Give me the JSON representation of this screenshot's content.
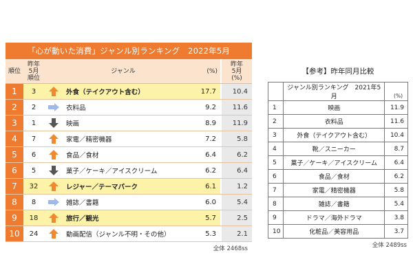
{
  "main": {
    "title": "「心が動いた消費」ジャンル別ランキング　2022年5月",
    "headers": {
      "rank": "順位",
      "prev_rank": "昨年\n5月\n順位",
      "genre": "ジャンル",
      "pct": "(%)",
      "prev_pct": "昨年\n5月\n(%)"
    },
    "rows": [
      {
        "rank": "1",
        "prev": "3",
        "trend": "up",
        "genre": "外食（テイクアウト含む）",
        "pct": "17.7",
        "prev_pct": "10.4",
        "highlight": true
      },
      {
        "rank": "2",
        "prev": "2",
        "trend": "same",
        "genre": "衣料品",
        "pct": "9.2",
        "prev_pct": "11.6",
        "highlight": false
      },
      {
        "rank": "3",
        "prev": "1",
        "trend": "down",
        "genre": "映画",
        "pct": "8.9",
        "prev_pct": "11.9",
        "highlight": false
      },
      {
        "rank": "4",
        "prev": "7",
        "trend": "up",
        "genre": "家電／精密機器",
        "pct": "7.2",
        "prev_pct": "5.8",
        "highlight": false
      },
      {
        "rank": "5",
        "prev": "6",
        "trend": "up",
        "genre": "食品／食材",
        "pct": "6.4",
        "prev_pct": "6.2",
        "highlight": false
      },
      {
        "rank": "6",
        "prev": "5",
        "trend": "down",
        "genre": "菓子／ケーキ／アイスクリーム",
        "pct": "6.2",
        "prev_pct": "6.4",
        "highlight": false
      },
      {
        "rank": "7",
        "prev": "32",
        "trend": "up",
        "genre": "レジャー／テーマパーク",
        "pct": "6.1",
        "prev_pct": "1.2",
        "highlight": true
      },
      {
        "rank": "8",
        "prev": "8",
        "trend": "same",
        "genre": "雑誌／書籍",
        "pct": "6.0",
        "prev_pct": "5.4",
        "highlight": false
      },
      {
        "rank": "9",
        "prev": "18",
        "trend": "up",
        "genre": "旅行／観光",
        "pct": "5.7",
        "prev_pct": "2.5",
        "highlight": true
      },
      {
        "rank": "10",
        "prev": "24",
        "trend": "up",
        "genre": "動画配信（ジャンル不明・その他）",
        "pct": "5.3",
        "prev_pct": "2.1",
        "highlight": false
      }
    ],
    "footer": "全体 2468ss"
  },
  "reference": {
    "title": "【参考】昨年同月比較",
    "unit": "(%)",
    "header": "ジャンル別ランキング　2021年5月",
    "rows": [
      {
        "rank": "1",
        "genre": "映画",
        "pct": "11.9"
      },
      {
        "rank": "2",
        "genre": "衣料品",
        "pct": "11.6"
      },
      {
        "rank": "3",
        "genre": "外食（テイクアウト含む）",
        "pct": "10.4"
      },
      {
        "rank": "4",
        "genre": "靴／スニーカー",
        "pct": "8.7"
      },
      {
        "rank": "5",
        "genre": "菓子／ケーキ／アイスクリーム",
        "pct": "6.4"
      },
      {
        "rank": "6",
        "genre": "食品／食材",
        "pct": "6.2"
      },
      {
        "rank": "7",
        "genre": "家電／精密機器",
        "pct": "5.8"
      },
      {
        "rank": "8",
        "genre": "雑誌／書籍",
        "pct": "5.4"
      },
      {
        "rank": "9",
        "genre": "ドラマ／海外ドラマ",
        "pct": "3.8"
      },
      {
        "rank": "10",
        "genre": "化粧品／美容用品",
        "pct": "3.7"
      }
    ],
    "footer": "全体 2489ss"
  },
  "colors": {
    "accent": "#ee7b2f",
    "header_bg": "#fbe3cd",
    "highlight": "#fdf3a8",
    "arrow_up": "#f08a30",
    "arrow_down": "#555555",
    "arrow_same": "#9fb8e8"
  },
  "chart_data": [
    {
      "type": "table",
      "title": "「心が動いた消費」ジャンル別ランキング　2022年5月",
      "columns": [
        "順位",
        "昨年5月順位",
        "ジャンル",
        "(%)",
        "昨年5月(%)"
      ],
      "rows": [
        [
          1,
          3,
          "外食（テイクアウト含む）",
          17.7,
          10.4
        ],
        [
          2,
          2,
          "衣料品",
          9.2,
          11.6
        ],
        [
          3,
          1,
          "映画",
          8.9,
          11.9
        ],
        [
          4,
          7,
          "家電／精密機器",
          7.2,
          5.8
        ],
        [
          5,
          6,
          "食品／食材",
          6.4,
          6.2
        ],
        [
          6,
          5,
          "菓子／ケーキ／アイスクリーム",
          6.2,
          6.4
        ],
        [
          7,
          32,
          "レジャー／テーマパーク",
          6.1,
          1.2
        ],
        [
          8,
          8,
          "雑誌／書籍",
          6.0,
          5.4
        ],
        [
          9,
          18,
          "旅行／観光",
          5.7,
          2.5
        ],
        [
          10,
          24,
          "動画配信（ジャンル不明・その他）",
          5.3,
          2.1
        ]
      ]
    },
    {
      "type": "table",
      "title": "【参考】昨年同月比較",
      "columns": [
        "順位",
        "ジャンル別ランキング　2021年5月",
        "(%)"
      ],
      "rows": [
        [
          1,
          "映画",
          11.9
        ],
        [
          2,
          "衣料品",
          11.6
        ],
        [
          3,
          "外食（テイクアウト含む）",
          10.4
        ],
        [
          4,
          "靴／スニーカー",
          8.7
        ],
        [
          5,
          "菓子／ケーキ／アイスクリーム",
          6.4
        ],
        [
          6,
          "食品／食材",
          6.2
        ],
        [
          7,
          "家電／精密機器",
          5.8
        ],
        [
          8,
          "雑誌／書籍",
          5.4
        ],
        [
          9,
          "ドラマ／海外ドラマ",
          3.8
        ],
        [
          10,
          "化粧品／美容用品",
          3.7
        ]
      ]
    }
  ]
}
